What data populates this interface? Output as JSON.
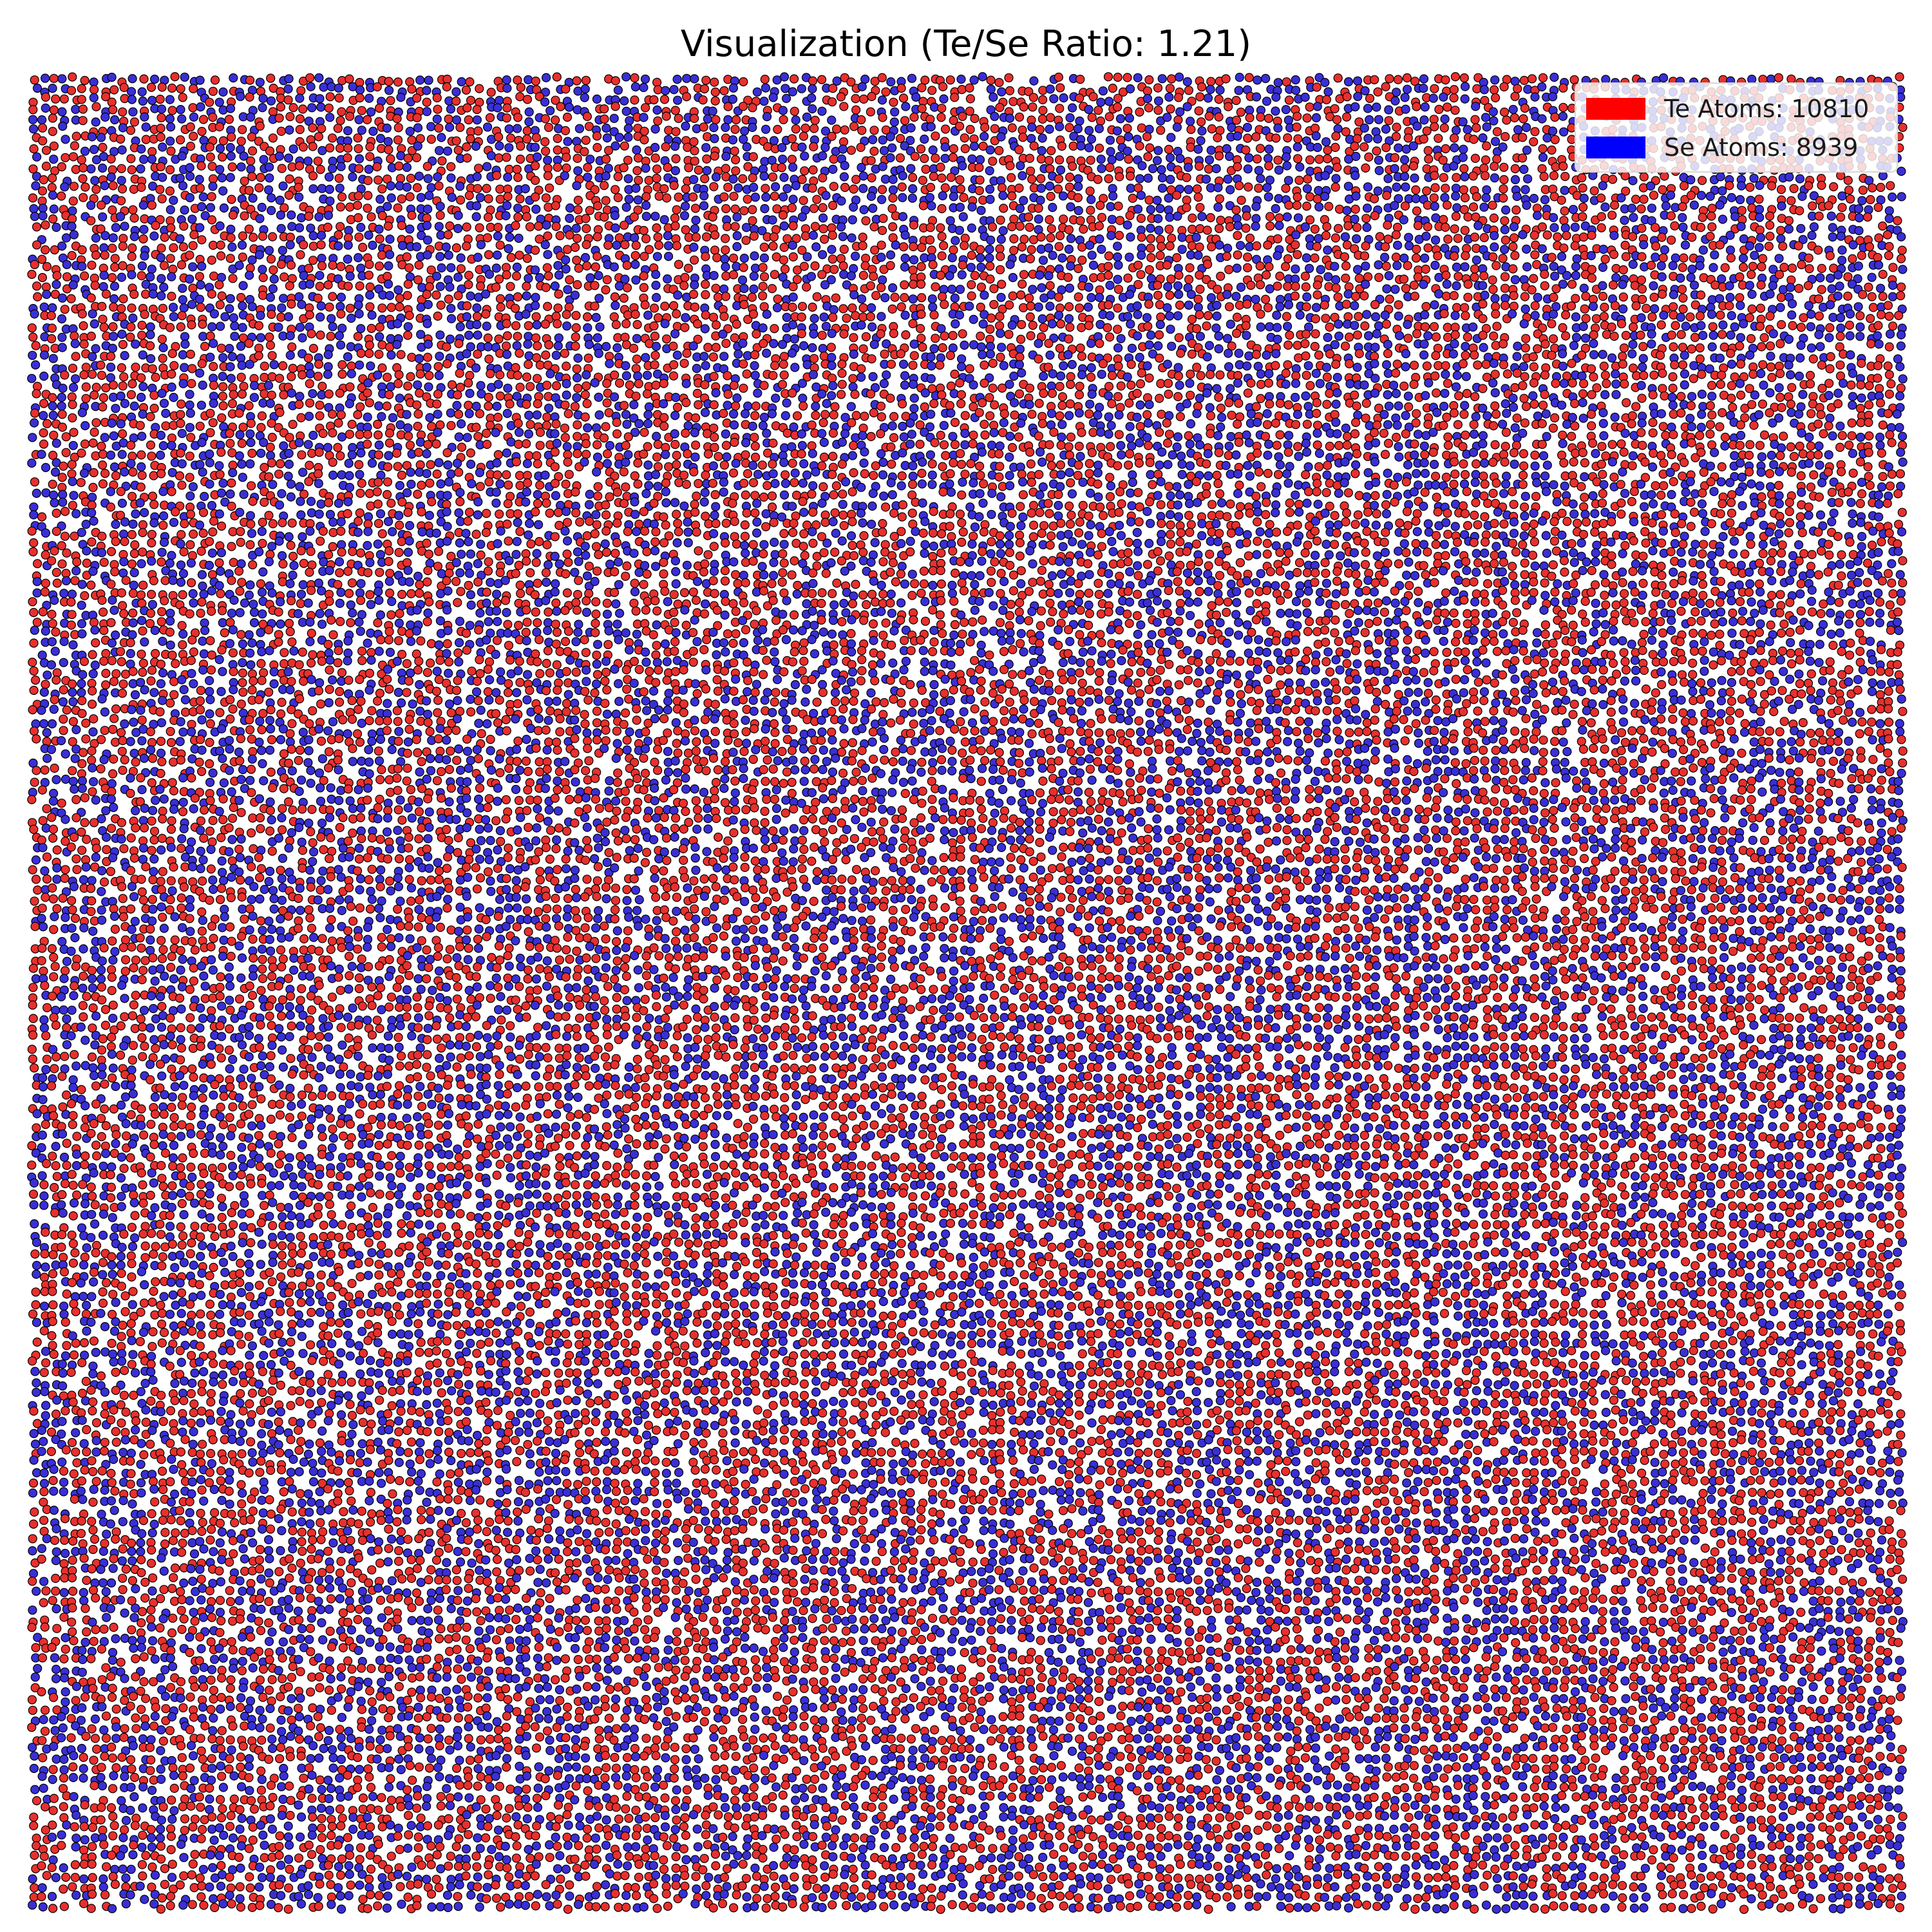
{
  "chart_data": {
    "type": "scatter",
    "title": "Visualization (Te/Se Ratio: 1.21)",
    "xlabel": "",
    "ylabel": "",
    "axes_visible": false,
    "grid": false,
    "legend_position": "top-right",
    "series": [
      {
        "name": "Te Atoms: 10810",
        "element": "Te",
        "count": 10810,
        "color": "#ff0000",
        "marker_fill": "#e8302e"
      },
      {
        "name": "Se Atoms: 8939",
        "element": "Se",
        "count": 8939,
        "color": "#0000ff",
        "marker_fill": "#3a2fd6"
      }
    ],
    "ratio": 1.21,
    "marker_edge_color": "#000000"
  }
}
